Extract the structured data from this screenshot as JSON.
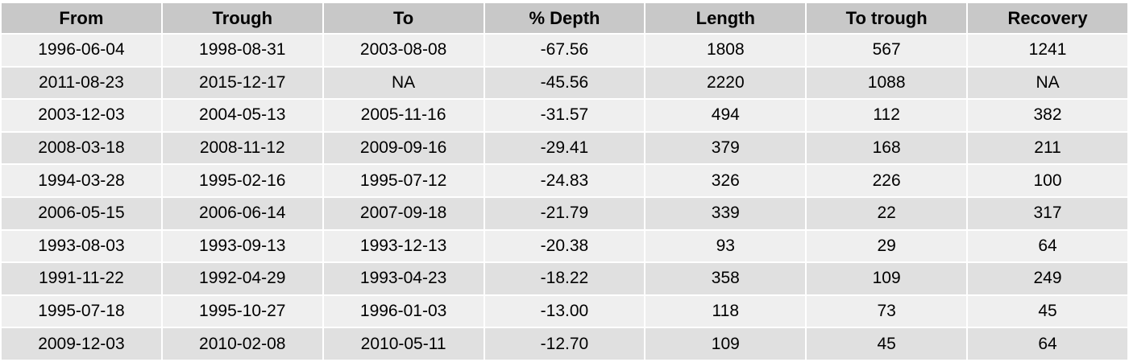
{
  "table": {
    "headers": [
      "From",
      "Trough",
      "To",
      "% Depth",
      "Length",
      "To trough",
      "Recovery"
    ],
    "rows": [
      [
        "1996-06-04",
        "1998-08-31",
        "2003-08-08",
        "-67.56",
        "1808",
        "567",
        "1241"
      ],
      [
        "2011-08-23",
        "2015-12-17",
        "NA",
        "-45.56",
        "2220",
        "1088",
        "NA"
      ],
      [
        "2003-12-03",
        "2004-05-13",
        "2005-11-16",
        "-31.57",
        "494",
        "112",
        "382"
      ],
      [
        "2008-03-18",
        "2008-11-12",
        "2009-09-16",
        "-29.41",
        "379",
        "168",
        "211"
      ],
      [
        "1994-03-28",
        "1995-02-16",
        "1995-07-12",
        "-24.83",
        "326",
        "226",
        "100"
      ],
      [
        "2006-05-15",
        "2006-06-14",
        "2007-09-18",
        "-21.79",
        "339",
        "22",
        "317"
      ],
      [
        "1993-08-03",
        "1993-09-13",
        "1993-12-13",
        "-20.38",
        "93",
        "29",
        "64"
      ],
      [
        "1991-11-22",
        "1992-04-29",
        "1993-04-23",
        "-18.22",
        "358",
        "109",
        "249"
      ],
      [
        "1995-07-18",
        "1995-10-27",
        "1996-01-03",
        "-13.00",
        "118",
        "73",
        "45"
      ],
      [
        "2009-12-03",
        "2010-02-08",
        "2010-05-11",
        "-12.70",
        "109",
        "45",
        "64"
      ]
    ]
  },
  "colors": {
    "header_bg": "#c8c8c8",
    "row_odd_bg": "#efefef",
    "row_even_bg": "#e0e0e0"
  }
}
